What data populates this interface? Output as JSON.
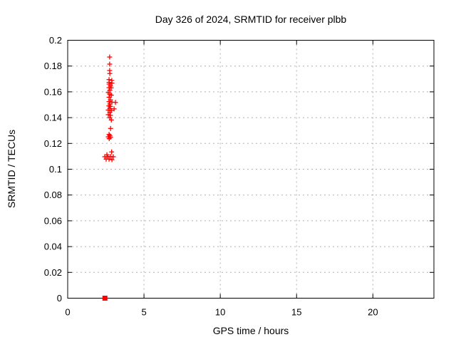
{
  "colors": {
    "background": "#ffffff",
    "border": "#000000",
    "grid": "#b0b0b0",
    "marker": "#ff0000"
  },
  "chart_data": {
    "type": "scatter",
    "title": "Day 326 of 2024, SRMTID for receiver plbb",
    "xlabel": "GPS time / hours",
    "ylabel": "SRMTID / TECUs",
    "xlim": [
      0,
      24
    ],
    "ylim": [
      0,
      0.2
    ],
    "xticks": [
      0,
      5,
      10,
      15,
      20
    ],
    "xtick_labels": [
      "0",
      "5",
      "10",
      "15",
      "20"
    ],
    "yticks": [
      0,
      0.02,
      0.04,
      0.06,
      0.08,
      0.1,
      0.12,
      0.14,
      0.16,
      0.18,
      0.2
    ],
    "ytick_labels": [
      "0",
      "0.02",
      "0.04",
      "0.06",
      "0.08",
      "0.1",
      "0.12",
      "0.14",
      "0.16",
      "0.18",
      "0.2"
    ],
    "grid": true,
    "legend": "none",
    "series": [
      {
        "marker": "plus",
        "color": "#ff0000",
        "points": [
          [
            2.75,
            0.187
          ],
          [
            2.75,
            0.1815
          ],
          [
            2.75,
            0.1765
          ],
          [
            2.76,
            0.1742
          ],
          [
            2.71,
            0.1695
          ],
          [
            2.89,
            0.1688
          ],
          [
            2.71,
            0.1673
          ],
          [
            2.9,
            0.1668
          ],
          [
            2.72,
            0.166
          ],
          [
            2.8,
            0.1646
          ],
          [
            2.71,
            0.1632
          ],
          [
            2.85,
            0.1631
          ],
          [
            2.76,
            0.1612
          ],
          [
            2.66,
            0.1595
          ],
          [
            2.76,
            0.1582
          ],
          [
            2.86,
            0.1574
          ],
          [
            2.71,
            0.1558
          ],
          [
            2.8,
            0.1538
          ],
          [
            2.71,
            0.1524
          ],
          [
            2.9,
            0.152
          ],
          [
            3.13,
            0.1518
          ],
          [
            2.76,
            0.1506
          ],
          [
            2.7,
            0.1491
          ],
          [
            2.8,
            0.1487
          ],
          [
            2.76,
            0.1472
          ],
          [
            3.04,
            0.1468
          ],
          [
            2.66,
            0.1459
          ],
          [
            2.86,
            0.1455
          ],
          [
            2.76,
            0.1441
          ],
          [
            2.66,
            0.1423
          ],
          [
            2.8,
            0.1418
          ],
          [
            2.76,
            0.1399
          ],
          [
            2.86,
            0.1382
          ],
          [
            2.81,
            0.1316
          ],
          [
            2.71,
            0.127
          ],
          [
            2.76,
            0.126
          ],
          [
            2.66,
            0.1251
          ],
          [
            2.8,
            0.1248
          ],
          [
            2.72,
            0.1237
          ],
          [
            2.88,
            0.1134
          ],
          [
            2.57,
            0.1112
          ],
          [
            2.8,
            0.11
          ],
          [
            2.43,
            0.1097
          ],
          [
            2.62,
            0.1097
          ],
          [
            2.99,
            0.1097
          ],
          [
            2.52,
            0.1078
          ],
          [
            2.71,
            0.1078
          ],
          [
            2.9,
            0.1074
          ]
        ]
      },
      {
        "marker": "filled-square",
        "color": "#ff0000",
        "points": [
          [
            2.44,
            0.0
          ]
        ]
      }
    ]
  }
}
